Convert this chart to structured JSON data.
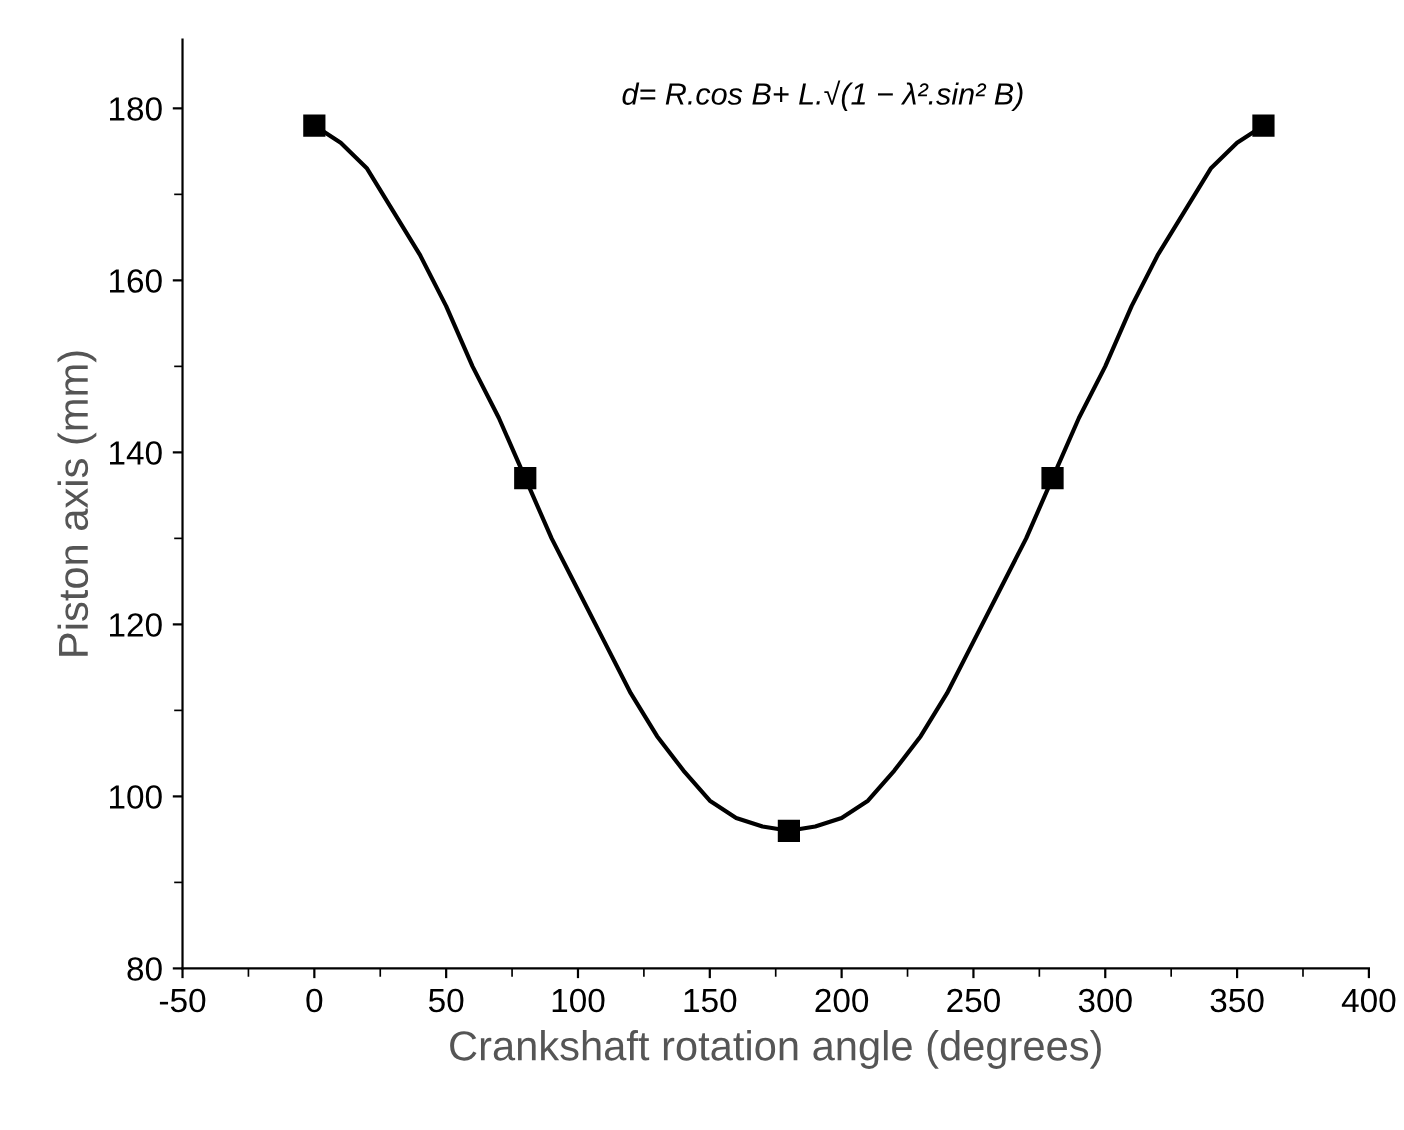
{
  "chart_data": {
    "type": "scatter",
    "xlabel": "Crankshaft rotation angle (degrees)",
    "ylabel": "Piston axis (mm)",
    "annotations": [
      "d= R.cos B+ L.√(1 − λ².sin² B)"
    ],
    "x": [
      0,
      80,
      180,
      280,
      360
    ],
    "series": [
      {
        "type": "line",
        "color": "#000000",
        "x": [
          0,
          10,
          20,
          30,
          40,
          50,
          60,
          70,
          80,
          90,
          100,
          110,
          120,
          130,
          140,
          150,
          160,
          170,
          180,
          190,
          200,
          210,
          220,
          230,
          240,
          250,
          260,
          270,
          280,
          290,
          300,
          310,
          320,
          330,
          340,
          350,
          360
        ],
        "values": [
          178,
          176,
          173,
          168,
          163,
          157,
          150,
          144,
          137,
          130,
          124,
          118,
          112,
          107,
          103,
          99.5,
          97.5,
          96.5,
          96,
          96.5,
          97.5,
          99.5,
          103,
          107,
          112,
          118,
          124,
          130,
          137,
          144,
          150,
          157,
          163,
          168,
          173,
          176,
          178
        ]
      },
      {
        "color": "#000000",
        "marker": "square",
        "values": [
          178,
          137,
          96,
          137,
          178
        ]
      }
    ],
    "line_style": "solid",
    "xlim": [
      -50,
      400
    ],
    "xticks": [
      -50,
      0,
      50,
      100,
      150,
      200,
      250,
      300,
      350,
      400
    ],
    "ylim": [
      80,
      188
    ],
    "yticks": [
      80,
      100,
      120,
      140,
      160,
      180
    ],
    "grid": false,
    "legend": false
  }
}
